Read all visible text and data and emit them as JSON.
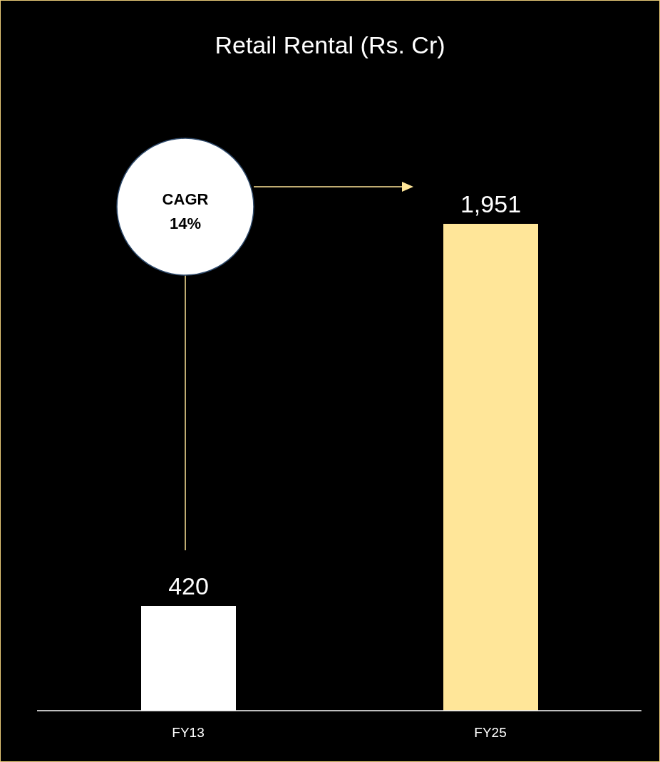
{
  "chart_data": {
    "type": "bar",
    "title": "Retail Rental (Rs. Cr)",
    "categories": [
      "FY13",
      "FY25"
    ],
    "values": [
      420,
      1951
    ],
    "colors": [
      "#ffffff",
      "#ffe699"
    ],
    "value_labels": [
      "420",
      "1,951"
    ],
    "annotations": [
      "CAGR\n14%"
    ]
  }
}
